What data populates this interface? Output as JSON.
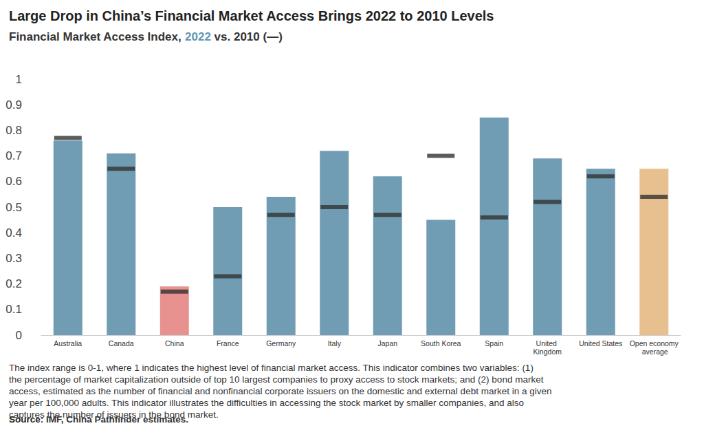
{
  "chart_data": {
    "type": "bar",
    "title": "Large Drop in China’s Financial Market Access Brings 2022 to 2010 Levels",
    "subtitle": "Financial Market Access Index, 2022 vs. 2010 (—)",
    "annotations": [
      "The index range is 0-1, where 1 indicates the highest level of financial market access. This indicator combines two variables: (1) the percentage of market capitalization outside of top 10 largest companies to proxy access to stock markets; and (2) bond market access, estimated as the number of financial and nonfinancial corporate issuers on the domestic and external debt market in a given year per 100,000 adults. This indicator illustrates the difficulties in accessing the stock market by smaller companies, and also captures the number of issuers in the bond market.",
      "Source: IMF, China Pathfinder estimates."
    ],
    "categories": [
      "Australia",
      "Canada",
      "China",
      "France",
      "Germany",
      "Italy",
      "Japan",
      "South Korea",
      "Spain",
      "United Kingdom",
      "United States",
      "Open economy average"
    ],
    "series": [
      {
        "name": "2022",
        "type": "bar",
        "colors": [
          "#709db3",
          "#709db3",
          "#e8928f",
          "#709db3",
          "#709db3",
          "#709db3",
          "#709db3",
          "#709db3",
          "#709db3",
          "#709db3",
          "#709db3",
          "#e8c08f"
        ],
        "values": [
          0.76,
          0.71,
          0.19,
          0.5,
          0.54,
          0.72,
          0.62,
          0.45,
          0.85,
          0.69,
          0.65,
          0.65
        ]
      },
      {
        "name": "2010",
        "type": "scatter",
        "marker": "dash",
        "color": "#333333",
        "values": [
          0.77,
          0.65,
          0.17,
          0.23,
          0.47,
          0.5,
          0.47,
          0.7,
          0.46,
          0.52,
          0.62,
          0.54
        ]
      }
    ],
    "ylim": [
      0,
      1
    ],
    "yticks": [
      0,
      0.1,
      0.2,
      0.3,
      0.4,
      0.5,
      0.6,
      0.7,
      0.8,
      0.9,
      1
    ],
    "grid": false
  }
}
